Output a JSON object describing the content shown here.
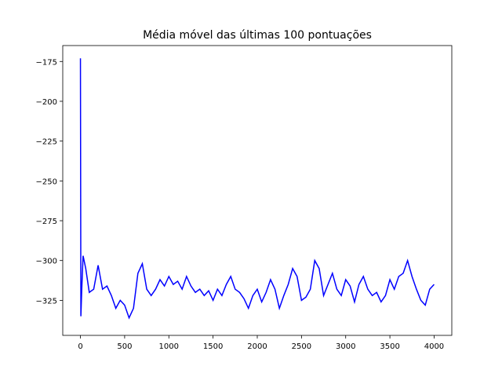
{
  "chart_data": {
    "type": "line",
    "title": "Média móvel das últimas 100 pontuações",
    "color": "#0000ff",
    "x": [
      0,
      5,
      15,
      30,
      60,
      100,
      150,
      200,
      250,
      300,
      350,
      400,
      450,
      500,
      550,
      600,
      650,
      700,
      750,
      800,
      850,
      900,
      950,
      1000,
      1050,
      1100,
      1150,
      1200,
      1250,
      1300,
      1350,
      1400,
      1450,
      1500,
      1550,
      1600,
      1650,
      1700,
      1750,
      1800,
      1850,
      1900,
      1950,
      2000,
      2050,
      2100,
      2150,
      2200,
      2250,
      2300,
      2350,
      2400,
      2450,
      2500,
      2550,
      2600,
      2650,
      2700,
      2750,
      2800,
      2850,
      2900,
      2950,
      3000,
      3050,
      3100,
      3150,
      3200,
      3250,
      3300,
      3350,
      3400,
      3450,
      3500,
      3550,
      3600,
      3650,
      3700,
      3750,
      3800,
      3850,
      3900,
      3950,
      4000
    ],
    "values": [
      -173,
      -335,
      -318,
      -297,
      -305,
      -320,
      -318,
      -303,
      -318,
      -316,
      -322,
      -330,
      -325,
      -328,
      -336,
      -330,
      -308,
      -302,
      -318,
      -322,
      -318,
      -312,
      -316,
      -310,
      -315,
      -313,
      -318,
      -310,
      -316,
      -320,
      -318,
      -322,
      -319,
      -325,
      -318,
      -322,
      -315,
      -310,
      -318,
      -320,
      -324,
      -330,
      -322,
      -318,
      -326,
      -320,
      -312,
      -318,
      -330,
      -322,
      -315,
      -305,
      -310,
      -325,
      -323,
      -318,
      -300,
      -305,
      -322,
      -315,
      -308,
      -318,
      -322,
      -312,
      -316,
      -326,
      -315,
      -310,
      -318,
      -322,
      -320,
      -326,
      -322,
      -312,
      -318,
      -310,
      -308,
      -300,
      -310,
      -318,
      -325,
      -328,
      -318,
      -315
    ],
    "xlim": [
      -200,
      4200
    ],
    "ylim": [
      -347,
      -165
    ],
    "xticks": [
      0,
      500,
      1000,
      1500,
      2000,
      2500,
      3000,
      3500,
      4000
    ],
    "yticks": [
      {
        "value": -325,
        "label": "−325"
      },
      {
        "value": -300,
        "label": "−300"
      },
      {
        "value": -275,
        "label": "−275"
      },
      {
        "value": -250,
        "label": "−250"
      },
      {
        "value": -225,
        "label": "−225"
      },
      {
        "value": -200,
        "label": "−200"
      },
      {
        "value": -175,
        "label": "−175"
      }
    ],
    "grid": false
  }
}
